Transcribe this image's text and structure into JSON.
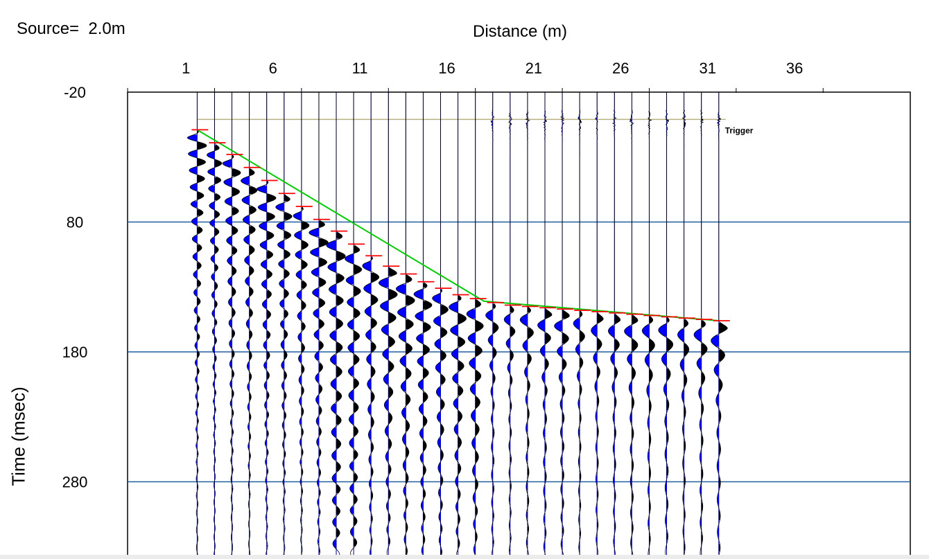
{
  "header": {
    "source_label": "Source=",
    "source_value": "2.0m"
  },
  "chart_data": {
    "type": "seismic-shot-gather",
    "xlabel": "Distance (m)",
    "ylabel": "Time (msec)",
    "x_ticks": [
      1,
      6,
      11,
      16,
      21,
      26,
      31,
      36
    ],
    "y_ticks": [
      -20,
      80,
      180,
      280
    ],
    "xlim": [
      -4,
      46
    ],
    "ylim": [
      -20,
      338
    ],
    "grid_lines_y": [
      80,
      180,
      280
    ],
    "trigger_label": "Trigger",
    "trigger_time": 1,
    "trace_spacing_m": 1,
    "traces_x": [
      2,
      3,
      4,
      5,
      6,
      7,
      8,
      9,
      10,
      11,
      12,
      13,
      14,
      15,
      16,
      17,
      18,
      19,
      20,
      21,
      22,
      23,
      24,
      25,
      26,
      27,
      28,
      29,
      30,
      31,
      32
    ],
    "first_breaks_ms": [
      9,
      19,
      28,
      38,
      48,
      58,
      68,
      78,
      87,
      97,
      106,
      114,
      120,
      126,
      131,
      136,
      139,
      142,
      144,
      145,
      146,
      147,
      148,
      149,
      150,
      151,
      152,
      153,
      154,
      155,
      156
    ],
    "fit_line": [
      [
        2,
        9
      ],
      [
        18.5,
        141
      ],
      [
        32,
        156
      ]
    ],
    "colors": {
      "positive_fill": "#000000",
      "negative_fill": "#0000ff",
      "trace_baseline": "#0000a0",
      "first_break_pick": "#ff0000",
      "fit_line": "#00cc00",
      "trigger_line": "#b8b080",
      "grid": "#1f5f9f"
    }
  }
}
